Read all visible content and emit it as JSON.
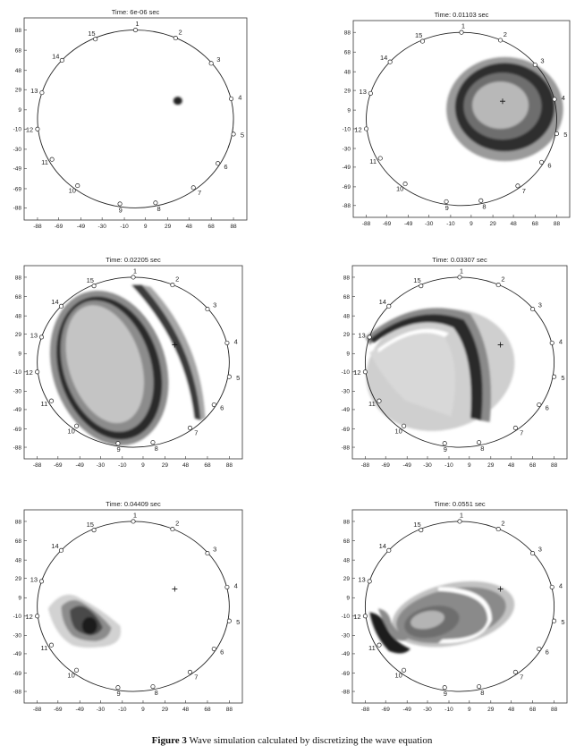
{
  "figure": {
    "caption_label": "Figure 3",
    "caption_text": " Wave simulation calculated by discretizing the wave equation"
  },
  "axes": {
    "ticks": [
      "-88",
      "-69",
      "-49",
      "-30",
      "-10",
      "9",
      "29",
      "48",
      "68",
      "88"
    ],
    "ytick_labels": [
      "88",
      "68",
      "48",
      "29",
      "9",
      "-10",
      "-30",
      "-49",
      "-69",
      "-88"
    ],
    "xtick_labels": [
      "-88",
      "-69",
      "-49",
      "-30",
      "-10",
      "9",
      "29",
      "48",
      "68",
      "88"
    ]
  },
  "electrodes": [
    {
      "label": "1",
      "x": 0,
      "y": 88
    },
    {
      "label": "2",
      "x": 36,
      "y": 80
    },
    {
      "label": "3",
      "x": 68,
      "y": 55
    },
    {
      "label": "4",
      "x": 86,
      "y": 20
    },
    {
      "label": "5",
      "x": 88,
      "y": -15
    },
    {
      "label": "6",
      "x": 74,
      "y": -44
    },
    {
      "label": "7",
      "x": 52,
      "y": -68
    },
    {
      "label": "8",
      "x": 18,
      "y": -83
    },
    {
      "label": "9",
      "x": -14,
      "y": -84
    },
    {
      "label": "10",
      "x": -52,
      "y": -66
    },
    {
      "label": "11",
      "x": -75,
      "y": -40
    },
    {
      "label": "12",
      "x": -88,
      "y": -10
    },
    {
      "label": "13",
      "x": -84,
      "y": 26
    },
    {
      "label": "14",
      "x": -66,
      "y": 58
    },
    {
      "label": "15",
      "x": -36,
      "y": 79
    }
  ],
  "panels": [
    {
      "title": "Time: 6e-06 sec",
      "cross": false
    },
    {
      "title": "Time: 0.01103 sec",
      "cross": true
    },
    {
      "title": "Time: 0.02205 sec",
      "cross": true
    },
    {
      "title": "Time: 0.03307 sec",
      "cross": true
    },
    {
      "title": "Time: 0.04409 sec",
      "cross": true
    },
    {
      "title": "Time: 0.0551 sec",
      "cross": true
    }
  ],
  "source": {
    "x": 38,
    "y": 18
  }
}
